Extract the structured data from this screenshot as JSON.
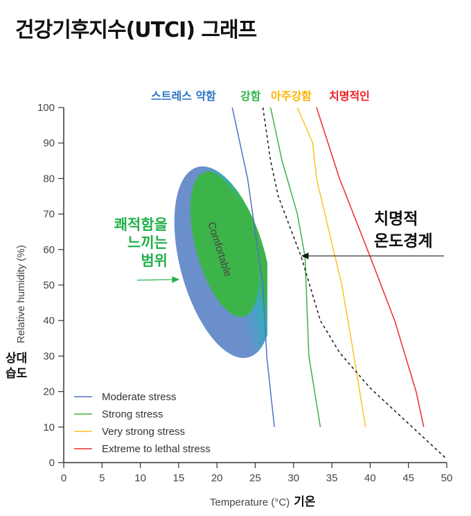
{
  "title": "건강기후지수(UTCI) 그래프",
  "chart_data": {
    "type": "line",
    "xlabel": "Temperature (°C)",
    "xlabel_kr": "기온",
    "ylabel": "Relative humidity (%)",
    "ylabel_kr": [
      "상대",
      "습도"
    ],
    "xlim": [
      0,
      50
    ],
    "ylim": [
      0,
      100
    ],
    "xticks": [
      0,
      5,
      10,
      15,
      20,
      25,
      30,
      35,
      40,
      45,
      50
    ],
    "yticks": [
      0,
      10,
      20,
      30,
      40,
      50,
      60,
      70,
      80,
      90,
      100
    ],
    "grid": false,
    "legend_placement": "bottom-left",
    "series": [
      {
        "name": "Moderate stress",
        "color": "#4a72c4",
        "points": [
          [
            22,
            100
          ],
          [
            24,
            80
          ],
          [
            25,
            65
          ],
          [
            26,
            50
          ],
          [
            26.5,
            30
          ],
          [
            27.5,
            10
          ]
        ]
      },
      {
        "name": "Strong stress",
        "color": "#3cb043",
        "points": [
          [
            27,
            100
          ],
          [
            28.5,
            85
          ],
          [
            30.5,
            70
          ],
          [
            31.5,
            58
          ],
          [
            32,
            30
          ],
          [
            33.5,
            10
          ]
        ]
      },
      {
        "name": "Very strong stress",
        "color": "#ffc020",
        "points": [
          [
            30.5,
            100
          ],
          [
            32.5,
            90
          ],
          [
            33,
            80
          ],
          [
            36.3,
            50
          ],
          [
            37.5,
            35
          ],
          [
            39.4,
            10
          ]
        ]
      },
      {
        "name": "Extreme to lethal stress",
        "color": "#ee2a2a",
        "points": [
          [
            33,
            100
          ],
          [
            36,
            80
          ],
          [
            40,
            58
          ],
          [
            43.2,
            40
          ],
          [
            46,
            20
          ],
          [
            47,
            10
          ]
        ]
      }
    ],
    "lethal_boundary": {
      "style": "dashed",
      "color": "#222222",
      "points": [
        [
          26,
          100
        ],
        [
          27,
          85
        ],
        [
          28,
          75
        ],
        [
          31,
          58
        ],
        [
          33.5,
          40
        ],
        [
          36,
          31
        ],
        [
          40,
          21
        ],
        [
          45,
          11
        ],
        [
          50,
          1
        ]
      ]
    },
    "comfort_zone_label": "Comfortable",
    "annotations": {
      "top_labels": [
        {
          "text": "스트레스 약함",
          "color": "#2e75c8"
        },
        {
          "text": "강함",
          "color": "#2fb34a"
        },
        {
          "text": "아주강함",
          "color": "#ffb300"
        },
        {
          "text": "치명적인",
          "color": "#ee1c24"
        }
      ],
      "comfort_range": {
        "lines": [
          "쾌적함을",
          "느끼는",
          "범위"
        ],
        "color": "#22b04a"
      },
      "lethal_threshold": {
        "lines": [
          "치명적",
          "온도경계"
        ],
        "color": "#111111"
      }
    }
  }
}
